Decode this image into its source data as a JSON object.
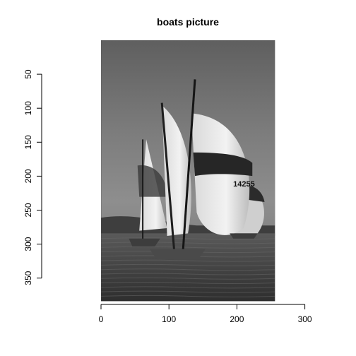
{
  "chart_data": {
    "type": "image",
    "title": "boats picture",
    "xlabel": "",
    "ylabel": "",
    "x_ticks": [
      0,
      100,
      200,
      300
    ],
    "y_ticks": [
      50,
      100,
      150,
      200,
      250,
      300,
      350
    ],
    "xlim": [
      0,
      300
    ],
    "ylim": [
      50,
      350
    ],
    "image": {
      "description_name": "sailboats",
      "sail_number": "14255",
      "extent_x": [
        0,
        256
      ],
      "extent_y": [
        0,
        384
      ]
    },
    "colors": {
      "axis": "#000000",
      "background": "#ffffff"
    }
  }
}
